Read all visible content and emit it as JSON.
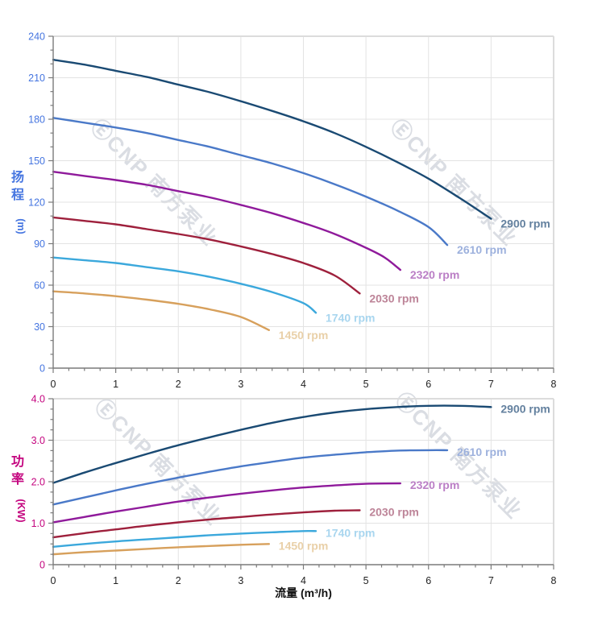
{
  "page": {
    "background": "#ffffff"
  },
  "watermark": {
    "text": "ⒺCNP 南方泵业",
    "color": "#dadde3"
  },
  "colors": {
    "grid": "#e3e3e3",
    "plot_border": "#dcdcdc",
    "spine": "#7a7a7a",
    "tick": "#7a7a7a",
    "x_tick_label": "#222222",
    "x_axis_title": "#111111"
  },
  "chart_data": [
    {
      "type": "line",
      "name": "head-chart",
      "ylabel": "扬程",
      "ylabel_unit": "(m)",
      "xlabel": "",
      "xlim": [
        0,
        8
      ],
      "ylim": [
        0,
        240
      ],
      "x_major": 1,
      "x_minor": 0.25,
      "y_major": 30,
      "y_minor": 10,
      "x_tick_labels": [
        "0",
        "1",
        "2",
        "3",
        "4",
        "5",
        "6",
        "7",
        "8"
      ],
      "y_tick_labels": [
        "0",
        "30",
        "60",
        "90",
        "120",
        "150",
        "180",
        "210",
        "240"
      ],
      "axis_label_color": "#4575e0",
      "grid": true,
      "legend_position": "end-of-curve",
      "series": [
        {
          "name": "2900 rpm",
          "color": "#1a4a73",
          "label_color": "#64819f",
          "points": [
            [
              0,
              223
            ],
            [
              0.5,
              219.5
            ],
            [
              1,
              215
            ],
            [
              1.5,
              210.5
            ],
            [
              2,
              205
            ],
            [
              2.5,
              199.5
            ],
            [
              3,
              193
            ],
            [
              3.5,
              186
            ],
            [
              4,
              178.5
            ],
            [
              4.5,
              170
            ],
            [
              5,
              160
            ],
            [
              5.5,
              149
            ],
            [
              6,
              137
            ],
            [
              6.5,
              123
            ],
            [
              7,
              108
            ]
          ]
        },
        {
          "name": "2610 rpm",
          "color": "#4a79c8",
          "label_color": "#9db1dd",
          "points": [
            [
              0,
              181
            ],
            [
              0.5,
              177.5
            ],
            [
              1,
              174
            ],
            [
              1.5,
              170
            ],
            [
              2,
              165
            ],
            [
              2.5,
              160
            ],
            [
              3,
              154
            ],
            [
              3.5,
              148
            ],
            [
              4,
              141
            ],
            [
              4.5,
              133
            ],
            [
              5,
              124
            ],
            [
              5.5,
              114
            ],
            [
              6,
              102
            ],
            [
              6.3,
              89
            ]
          ]
        },
        {
          "name": "2320 rpm",
          "color": "#8f1a9b",
          "label_color": "#bb7fc6",
          "points": [
            [
              0,
              142
            ],
            [
              0.5,
              139
            ],
            [
              1,
              136
            ],
            [
              1.5,
              132.5
            ],
            [
              2,
              128
            ],
            [
              2.5,
              123.5
            ],
            [
              3,
              118
            ],
            [
              3.5,
              112
            ],
            [
              4,
              105
            ],
            [
              4.5,
              97
            ],
            [
              5,
              87
            ],
            [
              5.3,
              80
            ],
            [
              5.55,
              71
            ]
          ]
        },
        {
          "name": "2030 rpm",
          "color": "#9e203c",
          "label_color": "#bd8498",
          "points": [
            [
              0,
              109
            ],
            [
              0.5,
              106.5
            ],
            [
              1,
              104
            ],
            [
              1.5,
              100.5
            ],
            [
              2,
              97
            ],
            [
              2.5,
              93
            ],
            [
              3,
              88
            ],
            [
              3.5,
              82.5
            ],
            [
              4,
              76
            ],
            [
              4.5,
              67
            ],
            [
              4.9,
              54
            ]
          ]
        },
        {
          "name": "1740 rpm",
          "color": "#3ba8dc",
          "label_color": "#a9d6ef",
          "points": [
            [
              0,
              80
            ],
            [
              0.5,
              78
            ],
            [
              1,
              76
            ],
            [
              1.5,
              73
            ],
            [
              2,
              70
            ],
            [
              2.5,
              66
            ],
            [
              3,
              61
            ],
            [
              3.5,
              55
            ],
            [
              4,
              47
            ],
            [
              4.2,
              40
            ]
          ]
        },
        {
          "name": "1450 rpm",
          "color": "#d7a05c",
          "label_color": "#e9d0a8",
          "points": [
            [
              0,
              55.5
            ],
            [
              0.5,
              54
            ],
            [
              1,
              52
            ],
            [
              1.5,
              49.5
            ],
            [
              2,
              46.5
            ],
            [
              2.5,
              42.5
            ],
            [
              3,
              37
            ],
            [
              3.45,
              27.5
            ]
          ]
        }
      ]
    },
    {
      "type": "line",
      "name": "power-chart",
      "ylabel": "功率",
      "ylabel_unit": "(KW)",
      "xlabel": "流量 (m³/h)",
      "xlim": [
        0,
        8
      ],
      "ylim": [
        0,
        4
      ],
      "x_major": 1,
      "x_minor": 0.25,
      "y_major": 1,
      "y_minor": 0.25,
      "x_tick_labels": [
        "0",
        "1",
        "2",
        "3",
        "4",
        "5",
        "6",
        "7",
        "8"
      ],
      "y_tick_labels": [
        "0",
        "1.0",
        "2.0",
        "3.0",
        "4.0"
      ],
      "axis_label_color": "#c4057f",
      "grid": true,
      "legend_position": "end-of-curve",
      "series": [
        {
          "name": "2900 rpm",
          "color": "#1a4a73",
          "label_color": "#64819f",
          "points": [
            [
              0,
              1.97
            ],
            [
              0.5,
              2.22
            ],
            [
              1,
              2.45
            ],
            [
              1.5,
              2.67
            ],
            [
              2,
              2.88
            ],
            [
              2.5,
              3.07
            ],
            [
              3,
              3.25
            ],
            [
              3.5,
              3.42
            ],
            [
              4,
              3.56
            ],
            [
              4.5,
              3.67
            ],
            [
              5,
              3.75
            ],
            [
              5.5,
              3.8
            ],
            [
              6,
              3.83
            ],
            [
              6.5,
              3.83
            ],
            [
              7,
              3.8
            ]
          ]
        },
        {
          "name": "2610 rpm",
          "color": "#4a79c8",
          "label_color": "#9db1dd",
          "points": [
            [
              0,
              1.45
            ],
            [
              0.5,
              1.62
            ],
            [
              1,
              1.79
            ],
            [
              1.5,
              1.95
            ],
            [
              2,
              2.1
            ],
            [
              2.5,
              2.24
            ],
            [
              3,
              2.37
            ],
            [
              3.5,
              2.48
            ],
            [
              4,
              2.58
            ],
            [
              4.5,
              2.65
            ],
            [
              5,
              2.71
            ],
            [
              5.5,
              2.75
            ],
            [
              6,
              2.76
            ],
            [
              6.3,
              2.76
            ]
          ]
        },
        {
          "name": "2320 rpm",
          "color": "#8f1a9b",
          "label_color": "#bb7fc6",
          "points": [
            [
              0,
              1.02
            ],
            [
              0.5,
              1.15
            ],
            [
              1,
              1.28
            ],
            [
              1.5,
              1.4
            ],
            [
              2,
              1.52
            ],
            [
              2.5,
              1.62
            ],
            [
              3,
              1.71
            ],
            [
              3.5,
              1.79
            ],
            [
              4,
              1.86
            ],
            [
              4.5,
              1.91
            ],
            [
              5,
              1.95
            ],
            [
              5.55,
              1.96
            ]
          ]
        },
        {
          "name": "2030 rpm",
          "color": "#9e203c",
          "label_color": "#bd8498",
          "points": [
            [
              0,
              0.66
            ],
            [
              0.5,
              0.76
            ],
            [
              1,
              0.85
            ],
            [
              1.5,
              0.94
            ],
            [
              2,
              1.02
            ],
            [
              2.5,
              1.09
            ],
            [
              3,
              1.15
            ],
            [
              3.5,
              1.21
            ],
            [
              4,
              1.26
            ],
            [
              4.5,
              1.3
            ],
            [
              4.9,
              1.31
            ]
          ]
        },
        {
          "name": "1740 rpm",
          "color": "#3ba8dc",
          "label_color": "#a9d6ef",
          "points": [
            [
              0,
              0.43
            ],
            [
              0.5,
              0.5
            ],
            [
              1,
              0.56
            ],
            [
              1.5,
              0.61
            ],
            [
              2,
              0.66
            ],
            [
              2.5,
              0.71
            ],
            [
              3,
              0.75
            ],
            [
              3.5,
              0.78
            ],
            [
              4,
              0.81
            ],
            [
              4.2,
              0.81
            ]
          ]
        },
        {
          "name": "1450 rpm",
          "color": "#d7a05c",
          "label_color": "#e9d0a8",
          "points": [
            [
              0,
              0.25
            ],
            [
              0.5,
              0.3
            ],
            [
              1,
              0.34
            ],
            [
              1.5,
              0.38
            ],
            [
              2,
              0.42
            ],
            [
              2.5,
              0.45
            ],
            [
              3,
              0.48
            ],
            [
              3.45,
              0.5
            ]
          ]
        }
      ]
    }
  ]
}
